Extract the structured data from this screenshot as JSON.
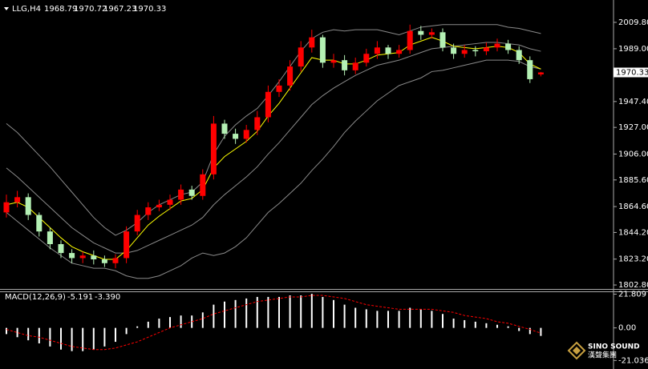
{
  "chart_data": [
    {
      "type": "candlestick",
      "symbol": "LLG,H4",
      "open": [
        1860,
        1868,
        1872,
        1858,
        1845,
        1835,
        1828,
        1824,
        1826,
        1823,
        1820,
        1824,
        1845,
        1858,
        1864,
        1866,
        1870,
        1878,
        1873,
        1890,
        1930,
        1922,
        1918,
        1925,
        1935,
        1955,
        1960,
        1975,
        1990,
        1998,
        1978,
        1980,
        1972,
        1978,
        1985,
        1990,
        1985,
        1988,
        2003,
        2000,
        2002,
        1990,
        1985,
        1988,
        1987,
        1990,
        1993,
        1988,
        1980,
        1968.79
      ],
      "high": [
        1874,
        1877,
        1875,
        1860,
        1848,
        1838,
        1831,
        1829,
        1830,
        1826,
        1827,
        1849,
        1862,
        1868,
        1870,
        1874,
        1882,
        1881,
        1894,
        1936,
        1933,
        1926,
        1929,
        1940,
        1960,
        1965,
        1980,
        1995,
        2004,
        2000,
        1985,
        1984,
        1982,
        1989,
        1995,
        1992,
        1992,
        2008,
        2007,
        2005,
        2005,
        1993,
        1992,
        1991,
        1994,
        1997,
        1996,
        1991,
        1983,
        1970.72
      ],
      "low": [
        1856,
        1864,
        1854,
        1841,
        1831,
        1824,
        1820,
        1820,
        1819,
        1817,
        1816,
        1820,
        1842,
        1854,
        1861,
        1862,
        1866,
        1870,
        1870,
        1886,
        1918,
        1914,
        1915,
        1921,
        1931,
        1951,
        1956,
        1971,
        1986,
        1974,
        1974,
        1968,
        1969,
        1975,
        1981,
        1981,
        1982,
        1985,
        1996,
        1997,
        1987,
        1981,
        1982,
        1983,
        1984,
        1987,
        1985,
        1977,
        1962,
        1967.23
      ],
      "close": [
        1868,
        1872,
        1858,
        1845,
        1835,
        1828,
        1824,
        1826,
        1823,
        1820,
        1824,
        1845,
        1858,
        1864,
        1866,
        1870,
        1878,
        1873,
        1890,
        1930,
        1922,
        1918,
        1925,
        1935,
        1955,
        1960,
        1975,
        1990,
        1998,
        1978,
        1980,
        1972,
        1978,
        1985,
        1990,
        1985,
        1988,
        2003,
        2000,
        2002,
        1990,
        1985,
        1988,
        1987,
        1990,
        1993,
        1988,
        1980,
        1965,
        1970.33
      ],
      "up_color": "#ff0000",
      "down_color": "#b4f0b4",
      "bands": {
        "color": "#8a8a8a",
        "upper": [
          1930,
          1923,
          1914,
          1905,
          1896,
          1886,
          1876,
          1866,
          1856,
          1848,
          1842,
          1846,
          1852,
          1860,
          1866,
          1870,
          1874,
          1876,
          1884,
          1906,
          1920,
          1929,
          1936,
          1942,
          1952,
          1963,
          1975,
          1987,
          1997,
          2002,
          2004,
          2003,
          2004,
          2004,
          2004,
          2002,
          2000,
          2003,
          2006,
          2007,
          2008,
          2008,
          2008,
          2008,
          2008,
          2008,
          2006,
          2005,
          2003,
          2001
        ],
        "middle": [
          1895,
          1888,
          1880,
          1872,
          1864,
          1856,
          1848,
          1842,
          1836,
          1832,
          1828,
          1828,
          1830,
          1834,
          1838,
          1842,
          1846,
          1850,
          1856,
          1866,
          1874,
          1881,
          1888,
          1896,
          1906,
          1915,
          1925,
          1935,
          1945,
          1952,
          1958,
          1963,
          1968,
          1972,
          1976,
          1978,
          1980,
          1983,
          1986,
          1989,
          1990,
          1991,
          1992,
          1993,
          1994,
          1994,
          1993,
          1992,
          1989,
          1987
        ],
        "lower": [
          1860,
          1853,
          1846,
          1839,
          1832,
          1826,
          1820,
          1818,
          1816,
          1816,
          1814,
          1810,
          1808,
          1808,
          1810,
          1814,
          1818,
          1824,
          1828,
          1826,
          1828,
          1833,
          1840,
          1850,
          1860,
          1867,
          1875,
          1883,
          1893,
          1902,
          1912,
          1923,
          1932,
          1940,
          1948,
          1954,
          1960,
          1963,
          1966,
          1971,
          1972,
          1974,
          1976,
          1978,
          1980,
          1980,
          1980,
          1979,
          1975,
          1973
        ]
      },
      "ma": {
        "color": "#ffff00",
        "values": [
          1866,
          1868,
          1864,
          1856,
          1848,
          1840,
          1833,
          1829,
          1826,
          1823,
          1823,
          1830,
          1840,
          1850,
          1857,
          1863,
          1869,
          1871,
          1878,
          1895,
          1904,
          1910,
          1916,
          1924,
          1936,
          1946,
          1958,
          1970,
          1982,
          1980,
          1980,
          1977,
          1977,
          1980,
          1984,
          1985,
          1986,
          1992,
          1995,
          1998,
          1995,
          1991,
          1990,
          1989,
          1990,
          1991,
          1990,
          1986,
          1977,
          1973
        ]
      },
      "ylim": [
        1800.3,
        2024.9
      ],
      "yticks": [
        {
          "value": 2009.8,
          "label": "2009.80"
        },
        {
          "value": 1989,
          "label": "1989.00"
        },
        {
          "value": 1947.4,
          "label": "1947.40"
        },
        {
          "value": 1927,
          "label": "1927.00"
        },
        {
          "value": 1906,
          "label": "1906.00"
        },
        {
          "value": 1885.6,
          "label": "1885.60"
        },
        {
          "value": 1864.6,
          "label": "1864.60"
        },
        {
          "value": 1844.2,
          "label": "1844.20"
        },
        {
          "value": 1823.2,
          "label": "1823.20"
        },
        {
          "value": 1802.8,
          "label": "1802.80"
        }
      ]
    },
    {
      "type": "macd",
      "title": "MACD(12,26,9)",
      "readout_labels": [
        "-5.191",
        "-3.390"
      ],
      "histogram": {
        "color": "#ffffff",
        "values": [
          -4,
          -6,
          -8,
          -10,
          -12,
          -14,
          -15,
          -15,
          -14,
          -12,
          -9,
          -4,
          1,
          4,
          6,
          7,
          8,
          8,
          10,
          15,
          17,
          18,
          19,
          20,
          20,
          20,
          21,
          21,
          22,
          20,
          18,
          15,
          13,
          12,
          11,
          11,
          11,
          13,
          12,
          11,
          9,
          6,
          5,
          4,
          3,
          2,
          1,
          -2,
          -4,
          -5.191
        ]
      },
      "signal": {
        "color": "#ff0000",
        "values": [
          -1,
          -3,
          -5,
          -6,
          -8,
          -10,
          -12,
          -13,
          -14,
          -14,
          -13,
          -11,
          -9,
          -6,
          -3,
          0,
          2,
          4,
          6,
          9,
          11,
          13,
          15,
          17,
          18,
          19,
          20,
          20,
          21,
          21,
          20,
          19,
          17,
          15,
          14,
          13,
          12,
          12,
          12,
          12,
          11,
          10,
          8,
          7,
          6,
          4,
          3,
          1,
          -1,
          -3.39
        ]
      },
      "ylim": [
        -25,
        23.6
      ],
      "yticks": [
        21.809,
        {
          "value": 0,
          "label": "0.00"
        },
        -21.036
      ]
    }
  ],
  "watermark": {
    "name": "SINO SOUND",
    "cn": "漢聲集團"
  }
}
